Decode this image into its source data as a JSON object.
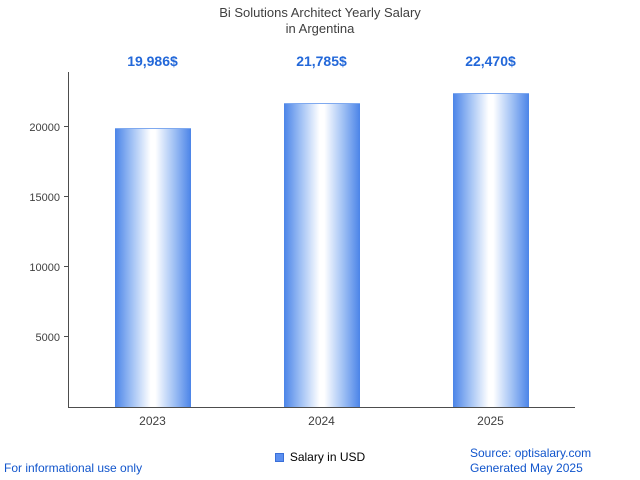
{
  "title": {
    "line1": "Bi Solutions Architect Yearly Salary",
    "line2": "in Argentina"
  },
  "chart_data": {
    "type": "bar",
    "title": "Bi Solutions Architect Yearly Salary in Argentina",
    "categories": [
      "2023",
      "2024",
      "2025"
    ],
    "values": [
      19986,
      21785,
      22470
    ],
    "value_labels": [
      "19,986$",
      "21,785$",
      "22,470$"
    ],
    "xlabel": "",
    "ylabel": "",
    "ylim": [
      0,
      24000
    ],
    "yticks": [
      5000,
      10000,
      15000,
      20000
    ],
    "grid": false,
    "legend": [
      "Salary in USD"
    ],
    "legend_position": "bottom",
    "bar_color": "#4b84e8"
  },
  "legend": {
    "label": "Salary in USD",
    "swatch_color": "#4b84e8"
  },
  "footer": {
    "left": "For informational use only",
    "source": "Source: optisalary.com",
    "generated": "Generated May 2025"
  },
  "colors": {
    "value_label": "#2368d9",
    "footer_link": "#1155cc",
    "axis": "#4d4d4d",
    "text": "#3f3f3f"
  }
}
